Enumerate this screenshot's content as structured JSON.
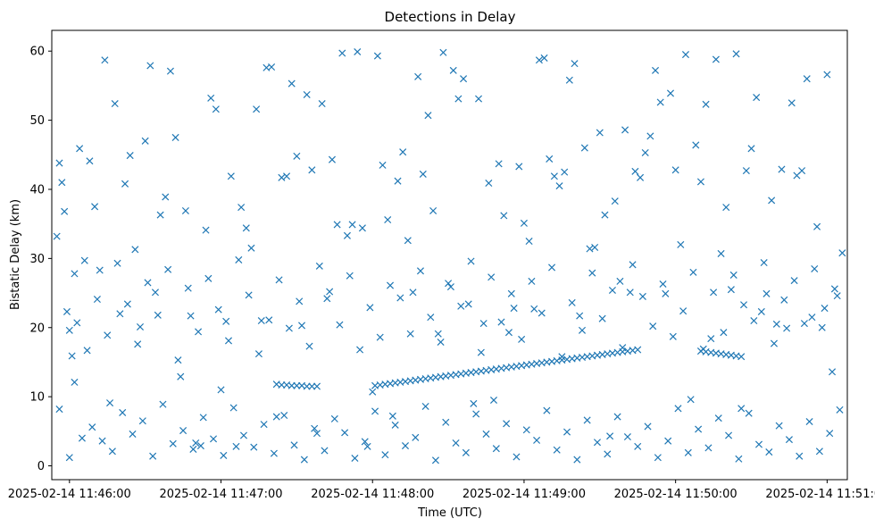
{
  "chart_data": {
    "type": "scatter",
    "title": "Detections in Delay",
    "xlabel": "Time (UTC)",
    "ylabel": "Bistatic Delay (km)",
    "x_axis_type": "time",
    "xlim": [
      "2025-02-14 11:45:53",
      "2025-02-14 11:51:08"
    ],
    "ylim": [
      -2,
      63
    ],
    "x_ticks": [
      "2025-02-14 11:46:00",
      "2025-02-14 11:47:00",
      "2025-02-14 11:48:00",
      "2025-02-14 11:49:00",
      "2025-02-14 11:50:00",
      "2025-02-14 11:51:00"
    ],
    "y_ticks": [
      0,
      10,
      20,
      30,
      40,
      50,
      60
    ],
    "grid": false,
    "marker": "x",
    "color": "#1f77b4",
    "points": {
      "x": [
        "11:45:55",
        "11:45:56",
        "11:45:57",
        "11:45:58",
        "11:45:59",
        "11:46:00",
        "11:46:01",
        "11:46:02",
        "11:46:03",
        "11:46:04",
        "11:46:06",
        "11:46:08",
        "11:46:10",
        "11:46:12",
        "11:46:14",
        "11:46:16",
        "11:46:18",
        "11:46:20",
        "11:46:22",
        "11:46:24",
        "11:46:26",
        "11:46:28",
        "11:46:30",
        "11:46:32",
        "11:46:34",
        "11:46:36",
        "11:46:38",
        "11:46:40",
        "11:46:42",
        "11:46:44",
        "11:46:46",
        "11:46:48",
        "11:46:50",
        "11:46:52",
        "11:46:54",
        "11:46:56",
        "11:46:58",
        "11:47:00",
        "11:47:02",
        "11:47:04",
        "11:47:06",
        "11:47:08",
        "11:47:10",
        "11:47:12",
        "11:47:14",
        "11:47:16",
        "11:47:18",
        "11:47:20",
        "11:47:22",
        "11:47:24",
        "11:47:26",
        "11:47:28",
        "11:47:30",
        "11:47:32",
        "11:47:34",
        "11:47:36",
        "11:47:38",
        "11:47:40",
        "11:47:42",
        "11:47:44",
        "11:47:46",
        "11:47:48",
        "11:47:50",
        "11:47:52",
        "11:47:54",
        "11:47:56",
        "11:47:58",
        "11:48:00",
        "11:48:02",
        "11:48:04",
        "11:48:06",
        "11:48:08",
        "11:48:10",
        "11:48:12",
        "11:48:14",
        "11:48:16",
        "11:48:18",
        "11:48:20",
        "11:48:22",
        "11:48:24",
        "11:48:26",
        "11:48:28",
        "11:48:30",
        "11:48:32",
        "11:48:34",
        "11:48:36",
        "11:48:38",
        "11:48:40",
        "11:48:42",
        "11:48:44",
        "11:48:46",
        "11:48:48",
        "11:48:50",
        "11:48:52",
        "11:48:54",
        "11:48:56",
        "11:48:58",
        "11:49:00",
        "11:49:02",
        "11:49:04",
        "11:49:06",
        "11:49:08",
        "11:49:10",
        "11:49:12",
        "11:49:14",
        "11:49:16",
        "11:49:18",
        "11:49:20",
        "11:49:22",
        "11:49:24",
        "11:49:26",
        "11:49:28",
        "11:49:30",
        "11:49:32",
        "11:49:34",
        "11:49:36",
        "11:49:38",
        "11:49:40",
        "11:49:42",
        "11:49:44",
        "11:49:46",
        "11:49:48",
        "11:49:50",
        "11:49:52",
        "11:49:54",
        "11:49:56",
        "11:49:58",
        "11:50:00",
        "11:50:02",
        "11:50:04",
        "11:50:06",
        "11:50:08",
        "11:50:10",
        "11:50:12",
        "11:50:14",
        "11:50:16",
        "11:50:18",
        "11:50:20",
        "11:50:22",
        "11:50:24",
        "11:50:26",
        "11:50:28",
        "11:50:30",
        "11:50:32",
        "11:50:34",
        "11:50:36",
        "11:50:38",
        "11:50:40",
        "11:50:42",
        "11:50:44",
        "11:50:46",
        "11:50:48",
        "11:50:50",
        "11:50:52",
        "11:50:54",
        "11:50:56",
        "11:50:58",
        "11:51:00",
        "11:51:02",
        "11:51:04",
        "11:51:06",
        "11:45:56",
        "11:46:00",
        "11:46:05",
        "11:46:09",
        "11:46:13",
        "11:46:17",
        "11:46:21",
        "11:46:25",
        "11:46:29",
        "11:46:33",
        "11:46:37",
        "11:46:41",
        "11:46:45",
        "11:46:49",
        "11:46:53",
        "11:46:57",
        "11:47:01",
        "11:47:05",
        "11:47:09",
        "11:47:13",
        "11:47:17",
        "11:47:21",
        "11:47:25",
        "11:47:29",
        "11:47:33",
        "11:47:37",
        "11:47:41",
        "11:47:45",
        "11:47:49",
        "11:47:53",
        "11:47:57",
        "11:48:01",
        "11:48:05",
        "11:48:09",
        "11:48:13",
        "11:48:17",
        "11:48:21",
        "11:48:25",
        "11:48:29",
        "11:48:33",
        "11:48:37",
        "11:48:41",
        "11:48:45",
        "11:48:49",
        "11:48:53",
        "11:48:57",
        "11:49:01",
        "11:49:05",
        "11:49:09",
        "11:49:13",
        "11:49:17",
        "11:49:21",
        "11:49:25",
        "11:49:29",
        "11:49:33",
        "11:49:37",
        "11:49:41",
        "11:49:45",
        "11:49:49",
        "11:49:53",
        "11:49:57",
        "11:50:01",
        "11:50:05",
        "11:50:09",
        "11:50:13",
        "11:50:17",
        "11:50:21",
        "11:50:25",
        "11:50:29",
        "11:50:33",
        "11:50:37",
        "11:50:41",
        "11:50:45",
        "11:50:49",
        "11:50:53",
        "11:50:57",
        "11:51:01",
        "11:51:05",
        "11:47:22",
        "11:47:24",
        "11:47:26",
        "11:47:28",
        "11:47:30",
        "11:47:32",
        "11:47:34",
        "11:47:36",
        "11:47:38",
        "11:48:01",
        "11:48:03",
        "11:48:05",
        "11:48:07",
        "11:48:09",
        "11:48:11",
        "11:48:13",
        "11:48:15",
        "11:48:17",
        "11:48:19",
        "11:48:21",
        "11:48:23",
        "11:48:25",
        "11:48:27",
        "11:48:29",
        "11:48:31",
        "11:48:33",
        "11:48:35",
        "11:48:37",
        "11:48:39",
        "11:48:41",
        "11:48:43",
        "11:48:45",
        "11:48:47",
        "11:48:49",
        "11:48:51",
        "11:48:53",
        "11:48:55",
        "11:48:57",
        "11:48:59",
        "11:49:01",
        "11:49:03",
        "11:49:05",
        "11:49:07",
        "11:49:09",
        "11:49:11",
        "11:49:13",
        "11:49:15",
        "11:49:17",
        "11:49:19",
        "11:49:21",
        "11:49:23",
        "11:49:25",
        "11:49:27",
        "11:49:29",
        "11:49:31",
        "11:49:33",
        "11:49:35",
        "11:49:37",
        "11:49:39",
        "11:49:41",
        "11:49:43",
        "11:49:45",
        "11:50:10",
        "11:50:12",
        "11:50:14",
        "11:50:16",
        "11:50:18",
        "11:50:20",
        "11:50:22",
        "11:50:24",
        "11:50:26",
        "11:46:02",
        "11:46:07",
        "11:46:11",
        "11:46:15",
        "11:46:19",
        "11:46:23",
        "11:46:27",
        "11:46:31",
        "11:46:35",
        "11:46:39",
        "11:46:43",
        "11:46:47",
        "11:46:51",
        "11:46:55",
        "11:46:59",
        "11:47:03",
        "11:47:07",
        "11:47:11",
        "11:47:15",
        "11:47:19",
        "11:47:23",
        "11:47:27",
        "11:47:31",
        "11:47:35",
        "11:47:39",
        "11:47:43",
        "11:47:47",
        "11:47:51",
        "11:47:55",
        "11:47:59",
        "11:48:03",
        "11:48:07",
        "11:48:11",
        "11:48:15",
        "11:48:19",
        "11:48:23",
        "11:48:27",
        "11:48:31",
        "11:48:35",
        "11:48:39",
        "11:48:43",
        "11:48:47",
        "11:48:51",
        "11:48:55",
        "11:48:59",
        "11:49:03",
        "11:49:07",
        "11:49:11",
        "11:49:15",
        "11:49:19",
        "11:49:23",
        "11:49:27",
        "11:49:31",
        "11:49:35",
        "11:49:39",
        "11:49:43",
        "11:49:47",
        "11:49:51",
        "11:49:55",
        "11:49:59",
        "11:50:03",
        "11:50:07",
        "11:50:11",
        "11:50:15",
        "11:50:19",
        "11:50:23",
        "11:50:27",
        "11:50:31",
        "11:50:35",
        "11:50:39",
        "11:50:43",
        "11:50:47",
        "11:50:51",
        "11:50:55",
        "11:50:59",
        "11:51:03"
      ],
      "y": [
        33.2,
        43.8,
        41.0,
        36.8,
        22.3,
        19.6,
        15.9,
        12.1,
        20.7,
        45.9,
        29.7,
        44.1,
        37.5,
        28.3,
        58.7,
        9.1,
        52.4,
        22.0,
        40.8,
        44.9,
        31.3,
        20.1,
        47.0,
        57.9,
        25.1,
        36.3,
        38.9,
        57.1,
        47.5,
        12.9,
        36.9,
        21.7,
        3.3,
        2.9,
        34.1,
        53.2,
        51.6,
        11.0,
        20.9,
        41.9,
        2.8,
        37.4,
        34.4,
        31.5,
        51.6,
        21.0,
        57.6,
        57.7,
        7.1,
        41.7,
        41.9,
        55.3,
        44.8,
        20.3,
        53.7,
        42.8,
        4.7,
        52.4,
        24.2,
        44.3,
        34.9,
        59.7,
        33.3,
        34.9,
        59.9,
        34.4,
        2.8,
        10.7,
        59.3,
        43.5,
        35.6,
        7.2,
        41.2,
        45.4,
        32.6,
        25.1,
        56.3,
        42.2,
        50.7,
        36.9,
        19.1,
        59.8,
        26.4,
        57.2,
        53.1,
        56.0,
        23.4,
        9.0,
        53.1,
        20.6,
        40.9,
        9.5,
        43.7,
        36.2,
        19.3,
        22.8,
        43.3,
        35.1,
        32.5,
        22.7,
        58.7,
        59.0,
        44.4,
        41.9,
        40.5,
        42.5,
        55.8,
        58.2,
        21.7,
        46.0,
        31.4,
        31.6,
        48.2,
        36.3,
        4.3,
        38.3,
        26.7,
        48.6,
        25.1,
        42.6,
        41.7,
        45.3,
        47.7,
        57.2,
        52.6,
        24.9,
        53.9,
        42.8,
        32.0,
        59.5,
        9.6,
        46.4,
        41.1,
        52.3,
        18.4,
        58.8,
        30.7,
        37.4,
        25.5,
        59.6,
        8.3,
        42.7,
        45.9,
        53.3,
        22.3,
        24.9,
        38.4,
        20.5,
        42.9,
        19.9,
        52.5,
        42.0,
        42.7,
        56.0,
        21.5,
        34.6,
        20.0,
        56.6,
        13.6,
        24.6,
        30.8,
        8.2,
        1.2,
        4.0,
        5.6,
        3.6,
        2.1,
        7.7,
        4.6,
        6.5,
        1.4,
        8.9,
        3.2,
        5.1,
        2.4,
        7.0,
        3.9,
        1.5,
        8.4,
        4.4,
        2.7,
        6.0,
        1.8,
        7.3,
        3.0,
        0.9,
        5.4,
        2.2,
        6.8,
        4.8,
        1.1,
        3.5,
        7.9,
        1.6,
        5.9,
        2.9,
        4.1,
        8.6,
        0.8,
        6.3,
        3.3,
        1.9,
        7.5,
        4.6,
        2.5,
        6.1,
        1.3,
        5.2,
        3.7,
        8.0,
        2.3,
        4.9,
        0.9,
        6.6,
        3.4,
        1.7,
        7.1,
        4.2,
        2.8,
        5.7,
        1.2,
        3.6,
        8.3,
        1.9,
        5.3,
        2.6,
        6.9,
        4.4,
        1.0,
        7.6,
        3.1,
        2.0,
        5.8,
        3.8,
        1.4,
        6.4,
        2.1,
        4.7,
        8.1,
        11.8,
        11.7,
        11.7,
        11.6,
        11.6,
        11.6,
        11.5,
        11.5,
        11.5,
        11.6,
        11.7,
        11.8,
        11.9,
        12.0,
        12.1,
        12.2,
        12.3,
        12.4,
        12.5,
        12.6,
        12.7,
        12.8,
        12.9,
        13.0,
        13.1,
        13.2,
        13.3,
        13.4,
        13.5,
        13.6,
        13.7,
        13.8,
        13.9,
        14.0,
        14.1,
        14.2,
        14.3,
        14.4,
        14.5,
        14.6,
        14.7,
        14.8,
        14.9,
        15.0,
        15.1,
        15.2,
        15.3,
        15.4,
        15.5,
        15.6,
        15.7,
        15.8,
        15.9,
        16.0,
        16.1,
        16.2,
        16.3,
        16.4,
        16.5,
        16.6,
        16.7,
        16.8,
        16.6,
        16.5,
        16.4,
        16.3,
        16.2,
        16.1,
        16.0,
        15.9,
        15.8,
        27.8,
        16.7,
        24.1,
        18.9,
        29.3,
        23.4,
        17.6,
        26.5,
        21.8,
        28.4,
        15.3,
        25.7,
        19.4,
        27.1,
        22.6,
        18.1,
        29.8,
        24.7,
        16.2,
        21.1,
        26.9,
        19.9,
        23.8,
        17.3,
        28.9,
        25.2,
        20.4,
        27.5,
        16.8,
        22.9,
        18.6,
        26.1,
        24.3,
        19.1,
        28.2,
        21.5,
        17.9,
        25.9,
        23.1,
        29.6,
        16.4,
        27.3,
        20.8,
        24.9,
        18.3,
        26.7,
        22.1,
        28.7,
        15.8,
        23.6,
        19.6,
        27.9,
        21.3,
        25.4,
        17.1,
        29.1,
        24.5,
        20.2,
        26.3,
        18.7,
        22.4,
        28.0,
        16.9,
        25.1,
        19.3,
        27.6,
        23.3,
        21.0,
        29.4,
        17.7,
        24.0,
        26.8,
        20.6,
        28.5,
        22.8,
        25.6
      ]
    }
  }
}
